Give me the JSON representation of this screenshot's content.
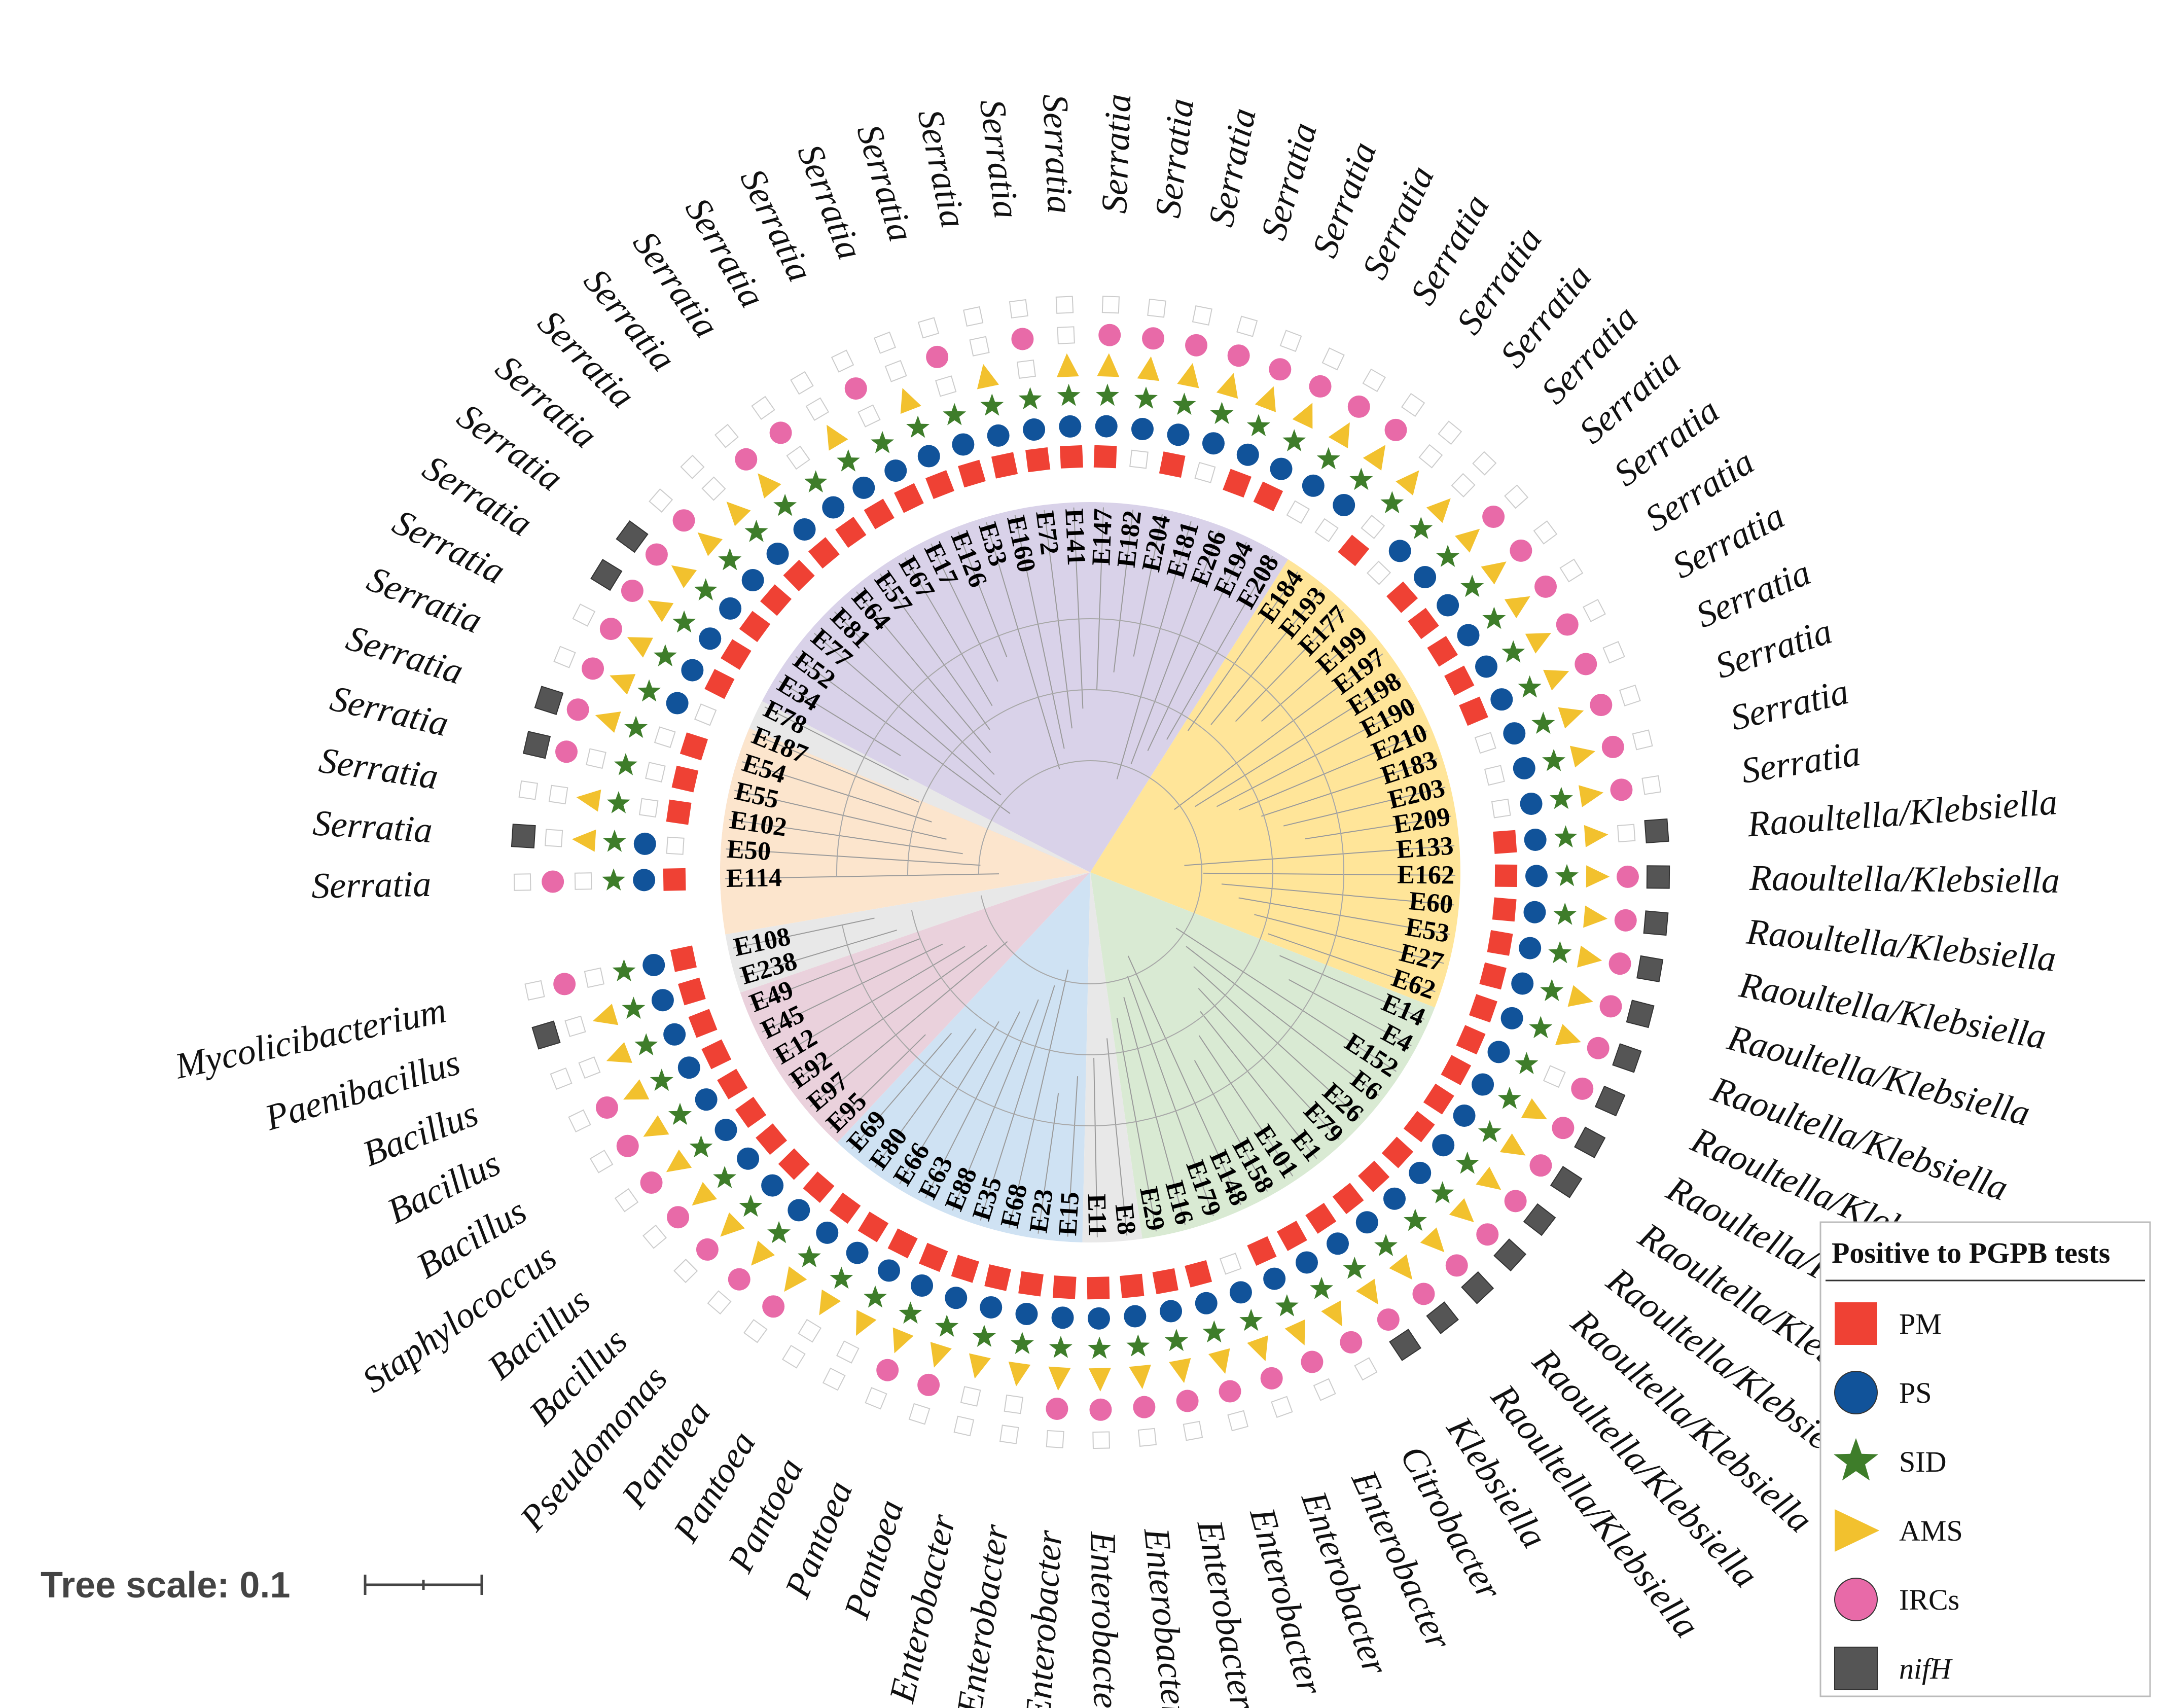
{
  "colors": {
    "PM": "#ef4134",
    "PS": "#11539a",
    "SID": "#3e7d2a",
    "AMS": "#f2c12e",
    "IRCs": "#e86aa8",
    "nifH": "#555555",
    "empty_stroke": "#cccccc",
    "clade_blue": "#cfe2f3",
    "clade_green": "#d9ead3",
    "clade_yellow": "#ffe599",
    "clade_purple": "#d9d2e9",
    "clade_pink": "#ead1dc",
    "clade_orange": "#fce5cd",
    "clade_gray": "#e8e8e8"
  },
  "legend": {
    "title": "Positive to PGPB tests",
    "items": [
      {
        "key": "PM",
        "label": "PM",
        "shape": "square",
        "italic": false
      },
      {
        "key": "PS",
        "label": "PS",
        "shape": "circle",
        "italic": false
      },
      {
        "key": "SID",
        "label": "SID",
        "shape": "star",
        "italic": false
      },
      {
        "key": "AMS",
        "label": "AMS",
        "shape": "triangle",
        "italic": false
      },
      {
        "key": "IRCs",
        "label": "IRCs",
        "shape": "circle",
        "italic": false
      },
      {
        "key": "nifH",
        "label": "nifH",
        "shape": "square",
        "italic": true
      }
    ]
  },
  "scale": {
    "label": "Tree scale: 0.1"
  },
  "clades": [
    {
      "name": "Serratia-purple",
      "color_key": "clade_purple",
      "from": 0,
      "to": 27
    },
    {
      "name": "Serratia-yellow",
      "color_key": "clade_yellow",
      "from": 27,
      "to": 44
    },
    {
      "name": "Raoultella-green",
      "color_key": "clade_green",
      "from": 44,
      "to": 57
    },
    {
      "name": "Enterobacter-blue",
      "color_key": "clade_blue",
      "from": 59,
      "to": 68
    },
    {
      "name": "Pantoea-pink",
      "color_key": "clade_pink",
      "from": 68,
      "to": 74
    },
    {
      "name": "Bacillus-orange",
      "color_key": "clade_orange",
      "from": 76,
      "to": 83
    },
    {
      "name": "gray-1",
      "color_key": "clade_gray",
      "from": 57,
      "to": 59
    },
    {
      "name": "gray-2",
      "color_key": "clade_gray",
      "from": 74,
      "to": 76
    },
    {
      "name": "gray-3",
      "color_key": "clade_gray",
      "from": 83,
      "to": 84
    }
  ],
  "leaves": [
    {
      "id": "E114",
      "genus": "Serratia",
      "traits": [
        1,
        1,
        1,
        0,
        1,
        0
      ]
    },
    {
      "id": "E50",
      "genus": "Serratia",
      "traits": [
        0,
        1,
        1,
        1,
        0,
        1
      ]
    },
    {
      "id": "E102",
      "genus": "Serratia",
      "traits": [
        1,
        0,
        1,
        1,
        0,
        0
      ]
    },
    {
      "id": "E55",
      "genus": "Serratia",
      "traits": [
        1,
        0,
        1,
        0,
        1,
        1
      ]
    },
    {
      "id": "E54",
      "genus": "Serratia",
      "traits": [
        1,
        0,
        1,
        1,
        1,
        1
      ]
    },
    {
      "id": "E187",
      "genus": "Serratia",
      "traits": [
        0,
        1,
        1,
        1,
        1,
        0
      ]
    },
    {
      "id": "E78",
      "genus": "Serratia",
      "traits": [
        1,
        1,
        1,
        1,
        1,
        0
      ]
    },
    {
      "id": "E34",
      "genus": "Serratia",
      "traits": [
        1,
        1,
        1,
        1,
        1,
        1
      ]
    },
    {
      "id": "E52",
      "genus": "Serratia",
      "traits": [
        1,
        1,
        1,
        1,
        1,
        1
      ]
    },
    {
      "id": "E77",
      "genus": "Serratia",
      "traits": [
        1,
        1,
        1,
        1,
        1,
        0
      ]
    },
    {
      "id": "E81",
      "genus": "Serratia",
      "traits": [
        1,
        1,
        1,
        1,
        0,
        0
      ]
    },
    {
      "id": "E64",
      "genus": "Serratia",
      "traits": [
        1,
        1,
        1,
        1,
        1,
        0
      ]
    },
    {
      "id": "E57",
      "genus": "Serratia",
      "traits": [
        1,
        1,
        1,
        0,
        1,
        0
      ]
    },
    {
      "id": "E67",
      "genus": "Serratia",
      "traits": [
        1,
        1,
        1,
        1,
        0,
        0
      ]
    },
    {
      "id": "E17",
      "genus": "Serratia",
      "traits": [
        1,
        1,
        1,
        0,
        1,
        0
      ]
    },
    {
      "id": "E126",
      "genus": "Serratia",
      "traits": [
        1,
        1,
        1,
        1,
        0,
        0
      ]
    },
    {
      "id": "E33",
      "genus": "Serratia",
      "traits": [
        1,
        1,
        1,
        0,
        1,
        0
      ]
    },
    {
      "id": "E160",
      "genus": "Serratia",
      "traits": [
        1,
        1,
        1,
        1,
        0,
        0
      ]
    },
    {
      "id": "E72",
      "genus": "Serratia",
      "traits": [
        1,
        1,
        1,
        0,
        1,
        0
      ]
    },
    {
      "id": "E141",
      "genus": "Serratia",
      "traits": [
        1,
        1,
        1,
        1,
        0,
        0
      ]
    },
    {
      "id": "E147",
      "genus": "Serratia",
      "traits": [
        1,
        1,
        1,
        1,
        1,
        0
      ]
    },
    {
      "id": "E182",
      "genus": "Serratia",
      "traits": [
        0,
        1,
        1,
        1,
        1,
        0
      ]
    },
    {
      "id": "E204",
      "genus": "Serratia",
      "traits": [
        1,
        1,
        1,
        1,
        1,
        0
      ]
    },
    {
      "id": "E181",
      "genus": "Serratia",
      "traits": [
        0,
        1,
        1,
        1,
        1,
        0
      ]
    },
    {
      "id": "E206",
      "genus": "Serratia",
      "traits": [
        1,
        1,
        1,
        1,
        1,
        0
      ]
    },
    {
      "id": "E194",
      "genus": "Serratia",
      "traits": [
        1,
        1,
        1,
        1,
        1,
        0
      ]
    },
    {
      "id": "E208",
      "genus": "Serratia",
      "traits": [
        0,
        1,
        1,
        1,
        1,
        0
      ]
    },
    {
      "id": "E184",
      "genus": "Serratia",
      "traits": [
        0,
        1,
        1,
        1,
        1,
        0
      ]
    },
    {
      "id": "E193",
      "genus": "Serratia",
      "traits": [
        1,
        0,
        1,
        1,
        0,
        0
      ]
    },
    {
      "id": "E177",
      "genus": "Serratia",
      "traits": [
        0,
        1,
        1,
        1,
        0,
        0
      ]
    },
    {
      "id": "E199",
      "genus": "Serratia",
      "traits": [
        1,
        1,
        1,
        1,
        1,
        0
      ]
    },
    {
      "id": "E197",
      "genus": "Serratia",
      "traits": [
        1,
        1,
        1,
        1,
        1,
        0
      ]
    },
    {
      "id": "E198",
      "genus": "Serratia",
      "traits": [
        1,
        1,
        1,
        1,
        1,
        0
      ]
    },
    {
      "id": "E190",
      "genus": "Serratia",
      "traits": [
        1,
        1,
        1,
        1,
        1,
        0
      ]
    },
    {
      "id": "E210",
      "genus": "Serratia",
      "traits": [
        1,
        1,
        1,
        1,
        1,
        0
      ]
    },
    {
      "id": "E183",
      "genus": "Serratia",
      "traits": [
        0,
        1,
        1,
        1,
        1,
        0
      ]
    },
    {
      "id": "E203",
      "genus": "Serratia",
      "traits": [
        0,
        1,
        1,
        1,
        1,
        0
      ]
    },
    {
      "id": "E209",
      "genus": "Serratia",
      "traits": [
        0,
        1,
        1,
        1,
        1,
        0
      ]
    },
    {
      "id": "E133",
      "genus": "Raoultella/Klebsiella",
      "traits": [
        1,
        1,
        1,
        1,
        0,
        1
      ]
    },
    {
      "id": "E162",
      "genus": "Raoultella/Klebsiella",
      "traits": [
        1,
        1,
        1,
        1,
        1,
        1
      ]
    },
    {
      "id": "E60",
      "genus": "Raoultella/Klebsiella",
      "traits": [
        1,
        1,
        1,
        1,
        1,
        1
      ]
    },
    {
      "id": "E53",
      "genus": "Raoultella/Klebsiella",
      "traits": [
        1,
        1,
        1,
        1,
        1,
        1
      ]
    },
    {
      "id": "E27",
      "genus": "Raoultella/Klebsiella",
      "traits": [
        1,
        1,
        1,
        1,
        1,
        1
      ]
    },
    {
      "id": "E62",
      "genus": "Raoultella/Klebsiella",
      "traits": [
        1,
        1,
        1,
        1,
        1,
        1
      ]
    },
    {
      "id": "E14",
      "genus": "Raoultella/Klebsiella",
      "traits": [
        1,
        1,
        1,
        0,
        1,
        1
      ]
    },
    {
      "id": "E4",
      "genus": "Raoultella/Klebsiella",
      "traits": [
        1,
        1,
        1,
        1,
        1,
        1
      ]
    },
    {
      "id": "E152",
      "genus": "Raoultella/Klebsiella",
      "traits": [
        1,
        1,
        1,
        1,
        1,
        1
      ]
    },
    {
      "id": "E6",
      "genus": "Raoultella/Klebsiella",
      "traits": [
        1,
        1,
        1,
        1,
        1,
        1
      ]
    },
    {
      "id": "E26",
      "genus": "Raoultella/Klebsiella",
      "traits": [
        1,
        1,
        1,
        1,
        1,
        1
      ]
    },
    {
      "id": "E79",
      "genus": "Raoultella/Klebsiella",
      "traits": [
        1,
        1,
        1,
        1,
        1,
        1
      ]
    },
    {
      "id": "E1",
      "genus": "Raoultella/Klebsiella",
      "traits": [
        1,
        1,
        1,
        1,
        1,
        1
      ]
    },
    {
      "id": "E101",
      "genus": "Klebsiella",
      "traits": [
        1,
        1,
        1,
        1,
        1,
        1
      ]
    },
    {
      "id": "E158",
      "genus": "Citrobacter",
      "traits": [
        1,
        1,
        1,
        1,
        1,
        0
      ]
    },
    {
      "id": "E148",
      "genus": "Enterobacter",
      "traits": [
        1,
        1,
        1,
        1,
        1,
        0
      ]
    },
    {
      "id": "E179",
      "genus": "Enterobacter",
      "traits": [
        0,
        1,
        1,
        1,
        1,
        0
      ]
    },
    {
      "id": "E16",
      "genus": "Enterobacter",
      "traits": [
        1,
        1,
        1,
        1,
        1,
        0
      ]
    },
    {
      "id": "E29",
      "genus": "Enterobacter",
      "traits": [
        1,
        1,
        1,
        1,
        1,
        0
      ]
    },
    {
      "id": "E8",
      "genus": "Enterobacter",
      "traits": [
        1,
        1,
        1,
        1,
        1,
        0
      ]
    },
    {
      "id": "E11",
      "genus": "Enterobacter",
      "traits": [
        1,
        1,
        1,
        1,
        1,
        0
      ]
    },
    {
      "id": "E15",
      "genus": "Enterobacter",
      "traits": [
        1,
        1,
        1,
        1,
        1,
        0
      ]
    },
    {
      "id": "E23",
      "genus": "Enterobacter",
      "traits": [
        1,
        1,
        1,
        1,
        0,
        0
      ]
    },
    {
      "id": "E68",
      "genus": "Enterobacter",
      "traits": [
        1,
        1,
        1,
        1,
        0,
        0
      ]
    },
    {
      "id": "E35",
      "genus": "Pantoea",
      "traits": [
        1,
        1,
        1,
        1,
        1,
        0
      ]
    },
    {
      "id": "E88",
      "genus": "Pantoea",
      "traits": [
        1,
        1,
        1,
        1,
        1,
        0
      ]
    },
    {
      "id": "E63",
      "genus": "Pantoea",
      "traits": [
        1,
        1,
        1,
        1,
        0,
        0
      ]
    },
    {
      "id": "E66",
      "genus": "Pantoea",
      "traits": [
        1,
        1,
        1,
        1,
        0,
        0
      ]
    },
    {
      "id": "E80",
      "genus": "Pantoea",
      "traits": [
        1,
        1,
        1,
        1,
        1,
        0
      ]
    },
    {
      "id": "E69",
      "genus": "Pseudomonas",
      "traits": [
        1,
        1,
        1,
        1,
        1,
        0
      ]
    },
    {
      "id": "E95",
      "genus": "Bacillus",
      "traits": [
        1,
        1,
        1,
        1,
        1,
        0
      ]
    },
    {
      "id": "E97",
      "genus": "Bacillus",
      "traits": [
        1,
        1,
        1,
        1,
        1,
        0
      ]
    },
    {
      "id": "E92",
      "genus": "Staphylococcus",
      "traits": [
        1,
        1,
        1,
        1,
        1,
        0
      ]
    },
    {
      "id": "E12",
      "genus": "Bacillus",
      "traits": [
        1,
        1,
        1,
        1,
        1,
        0
      ]
    },
    {
      "id": "E45",
      "genus": "Bacillus",
      "traits": [
        1,
        1,
        1,
        1,
        1,
        0
      ]
    },
    {
      "id": "E49",
      "genus": "Bacillus",
      "traits": [
        1,
        1,
        1,
        1,
        0,
        0
      ]
    },
    {
      "id": "E238",
      "genus": "Paenibacillus",
      "traits": [
        1,
        1,
        1,
        1,
        0,
        1
      ]
    },
    {
      "id": "E108",
      "genus": "Mycolicibacterium",
      "traits": [
        1,
        1,
        1,
        0,
        1,
        0
      ]
    }
  ]
}
